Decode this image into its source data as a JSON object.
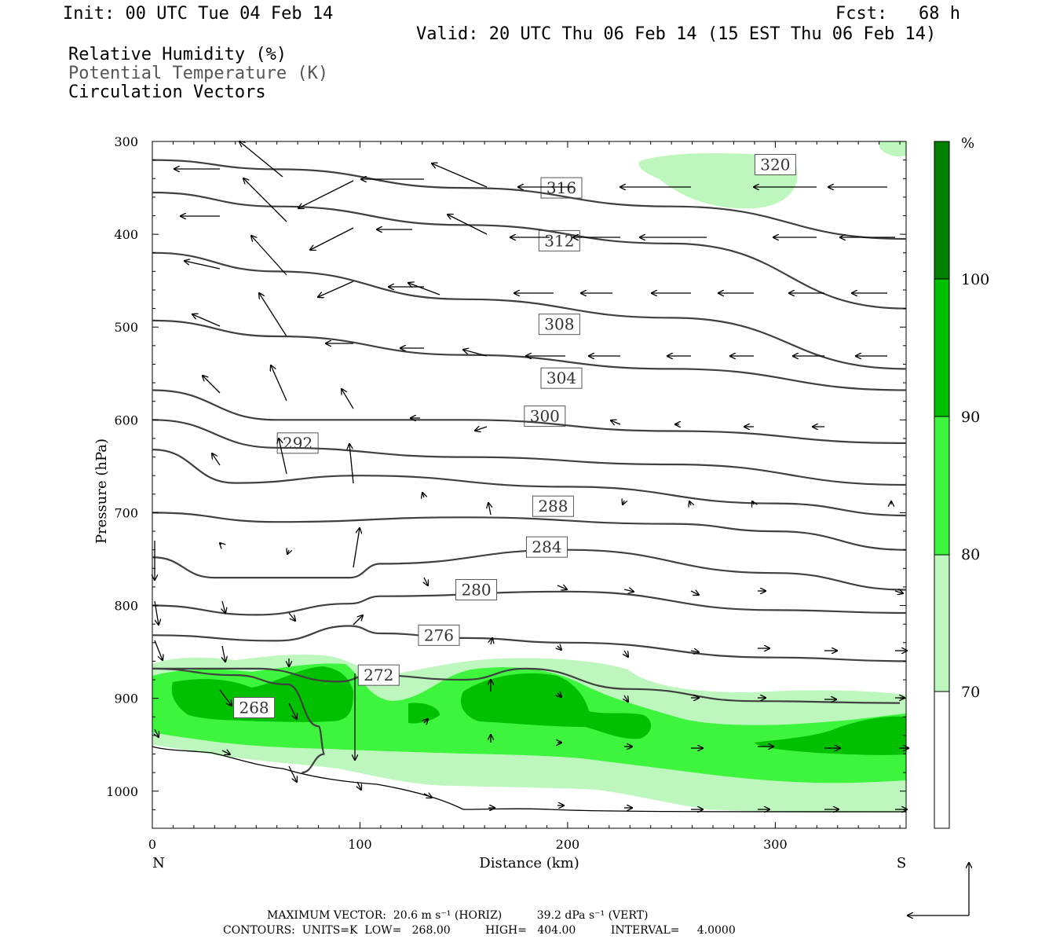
{
  "header": {
    "init": "Init: 00 UTC Tue 04 Feb 14",
    "fcst": "Fcst:   68 h",
    "valid": "Valid: 20 UTC Thu 06 Feb 14 (15 EST Thu 06 Feb 14)",
    "field1": "Relative Humidity (%)",
    "field2": "Potential Temperature (K)",
    "field3": "Circulation Vectors"
  },
  "footer": {
    "line1": "MAXIMUM VECTOR:  20.6 m s⁻¹ (HORIZ)          39.2 dPa s⁻¹ (VERT)",
    "line2": "CONTOURS:  UNITS=K  LOW=   268.00          HIGH=   404.00          INTERVAL=     4.0000"
  },
  "colors": {
    "rh70": "#bdf7bd",
    "rh80": "#3df53d",
    "rh90": "#00c000",
    "rh100": "#008000",
    "theta_line": "#404040",
    "vector": "#000000"
  },
  "chart_data": {
    "type": "contour",
    "xlabel": "Distance (km)",
    "ylabel": "Pressure (hPa)",
    "xlim": [
      0,
      363
    ],
    "ylim": [
      1040,
      300
    ],
    "x_ticks": [
      "0",
      "100",
      "200",
      "300"
    ],
    "y_ticks": [
      "300",
      "400",
      "500",
      "600",
      "700",
      "800",
      "900",
      "1000"
    ],
    "left_end_label": "N",
    "right_end_label": "S",
    "colorbar": {
      "unit": "%",
      "levels": [
        "70",
        "80",
        "90",
        "100"
      ]
    },
    "theta_contours": [
      {
        "label": "268",
        "x": 49,
        "p": 910,
        "points": [
          [
            0,
            868
          ],
          [
            40,
            875
          ],
          [
            65,
            885
          ],
          [
            80,
            930
          ],
          [
            83,
            960
          ],
          [
            72,
            980
          ]
        ]
      },
      {
        "label": "272",
        "x": 109,
        "p": 875,
        "points": [
          [
            0,
            868
          ],
          [
            50,
            868
          ],
          [
            90,
            882
          ],
          [
            105,
            875
          ],
          [
            150,
            880
          ],
          [
            180,
            868
          ],
          [
            230,
            890
          ],
          [
            290,
            903
          ],
          [
            360,
            905
          ]
        ]
      },
      {
        "label": "276",
        "x": 138,
        "p": 832,
        "points": [
          [
            0,
            832
          ],
          [
            60,
            838
          ],
          [
            95,
            822
          ],
          [
            110,
            830
          ],
          [
            150,
            835
          ],
          [
            200,
            840
          ],
          [
            300,
            856
          ],
          [
            363,
            860
          ]
        ]
      },
      {
        "label": "280",
        "x": 156,
        "p": 783,
        "points": [
          [
            0,
            800
          ],
          [
            50,
            810
          ],
          [
            95,
            798
          ],
          [
            110,
            790
          ],
          [
            200,
            785
          ],
          [
            300,
            805
          ],
          [
            363,
            808
          ]
        ]
      },
      {
        "label": "284",
        "x": 190,
        "p": 737,
        "points": [
          [
            0,
            748
          ],
          [
            30,
            770
          ],
          [
            95,
            770
          ],
          [
            110,
            755
          ],
          [
            200,
            740
          ],
          [
            300,
            765
          ],
          [
            363,
            783
          ]
        ]
      },
      {
        "label": "288",
        "x": 193,
        "p": 693,
        "points": [
          [
            0,
            700
          ],
          [
            60,
            710
          ],
          [
            150,
            705
          ],
          [
            250,
            712
          ],
          [
            300,
            720
          ],
          [
            363,
            740
          ]
        ]
      },
      {
        "label": "292",
        "x": 70,
        "p": 625,
        "points": [
          [
            0,
            632
          ],
          [
            40,
            668
          ],
          [
            100,
            660
          ],
          [
            200,
            672
          ],
          [
            300,
            690
          ],
          [
            363,
            703
          ]
        ]
      },
      {
        "label": "300",
        "x": 189,
        "p": 596,
        "points": [
          [
            0,
            600
          ],
          [
            60,
            630
          ],
          [
            150,
            640
          ],
          [
            250,
            648
          ],
          [
            363,
            670
          ]
        ]
      },
      {
        "label": "304",
        "x": 197,
        "p": 555,
        "points": [
          [
            0,
            568
          ],
          [
            60,
            600
          ],
          [
            150,
            600
          ],
          [
            250,
            612
          ],
          [
            363,
            625
          ]
        ]
      },
      {
        "label": "308",
        "x": 196,
        "p": 497,
        "points": [
          [
            0,
            493
          ],
          [
            60,
            510
          ],
          [
            150,
            530
          ],
          [
            250,
            545
          ],
          [
            363,
            568
          ]
        ]
      },
      {
        "label": "312",
        "x": 196,
        "p": 407,
        "points": [
          [
            0,
            420
          ],
          [
            60,
            440
          ],
          [
            150,
            470
          ],
          [
            250,
            490
          ],
          [
            363,
            545
          ]
        ]
      },
      {
        "label": "316",
        "x": 197,
        "p": 350,
        "points": [
          [
            0,
            355
          ],
          [
            60,
            370
          ],
          [
            150,
            390
          ],
          [
            250,
            410
          ],
          [
            363,
            480
          ]
        ]
      },
      {
        "label": "320",
        "x": 300,
        "p": 325,
        "points": [
          [
            0,
            320
          ],
          [
            60,
            330
          ],
          [
            150,
            350
          ],
          [
            250,
            370
          ],
          [
            363,
            405
          ]
        ]
      }
    ]
  }
}
